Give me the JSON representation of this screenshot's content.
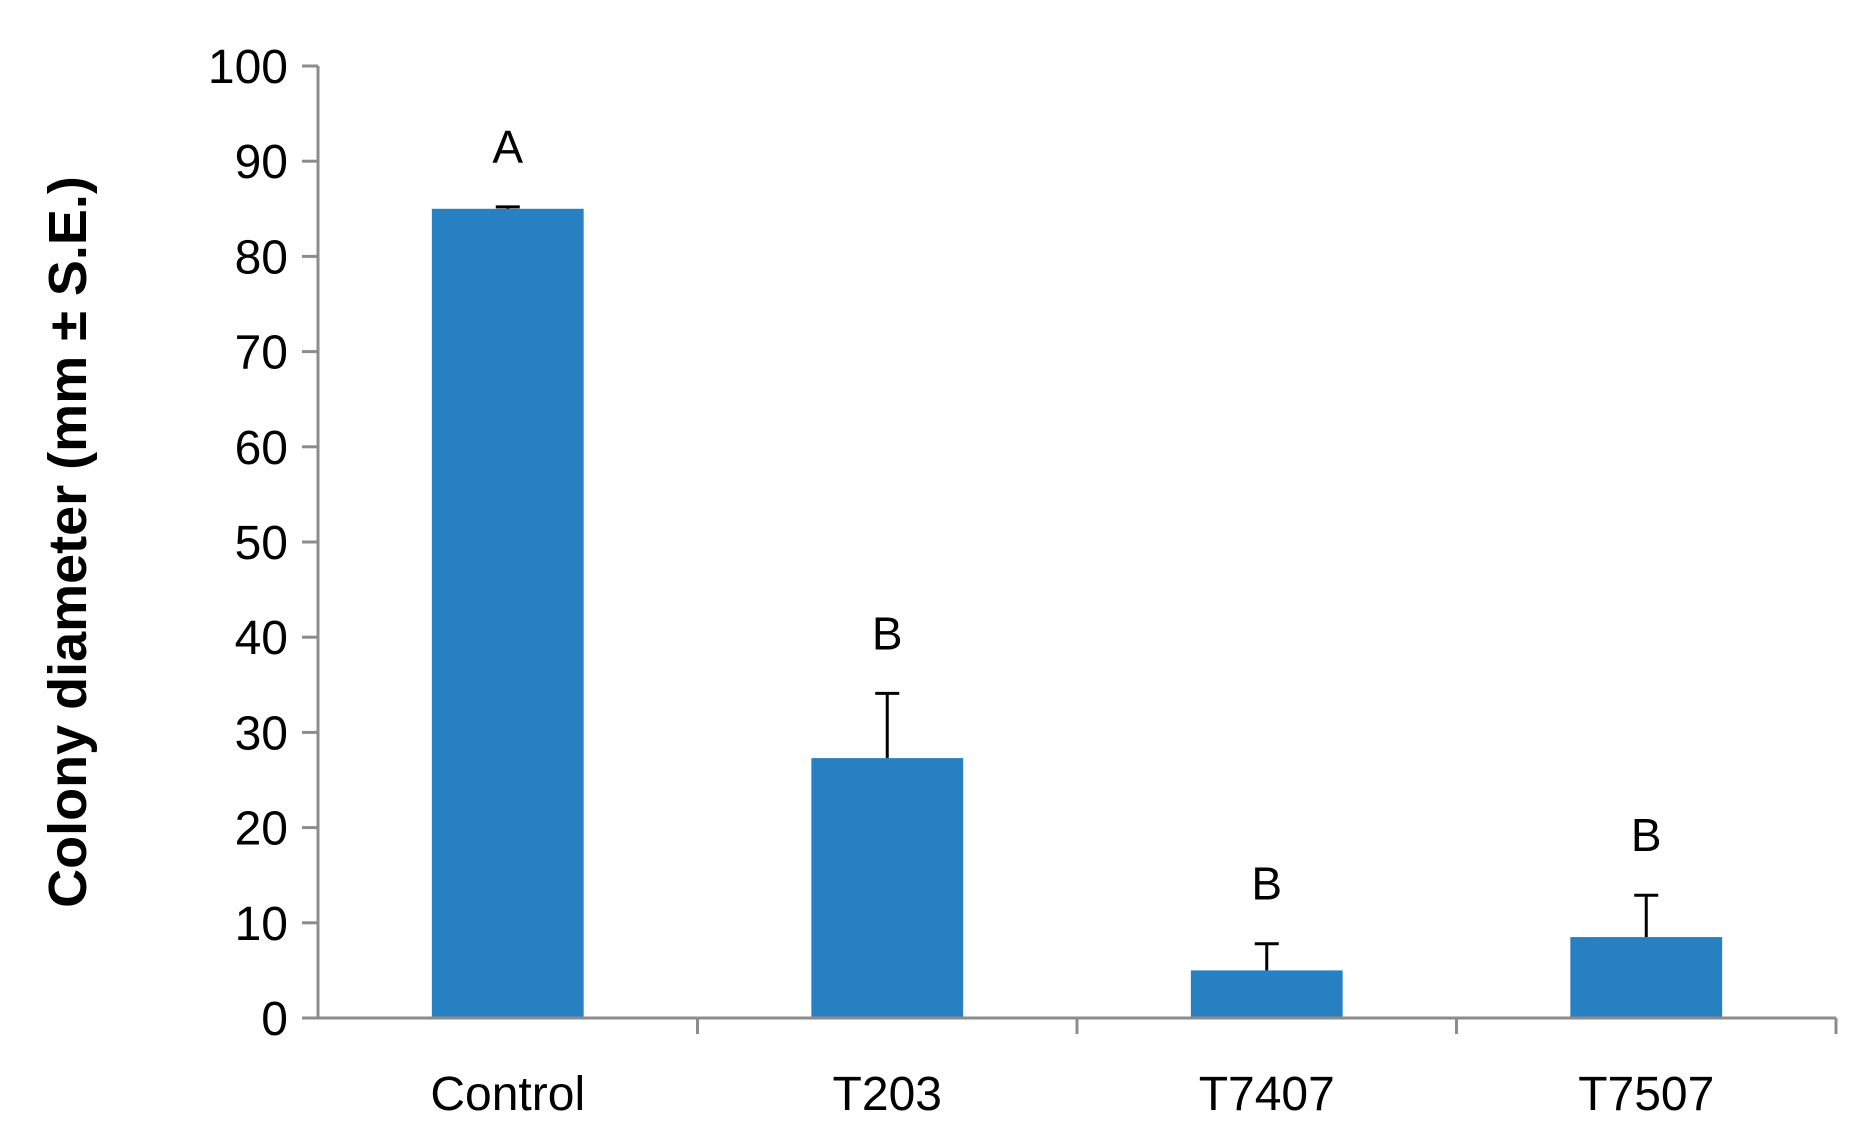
{
  "chart_data": {
    "type": "bar",
    "title": "",
    "xlabel": "",
    "ylabel": "Colony diameter (mm ± S.E.)",
    "ylim": [
      0,
      100
    ],
    "yticks": [
      "0",
      "10",
      "20",
      "30",
      "40",
      "50",
      "60",
      "70",
      "80",
      "90",
      "100"
    ],
    "categories": [
      "Control",
      "T203",
      "T7407",
      "T7507"
    ],
    "values": [
      85,
      27.3,
      5,
      8.5
    ],
    "errors": [
      0.2,
      6.8,
      2.8,
      4.4
    ],
    "significance": [
      "A",
      "B",
      "B",
      "B"
    ],
    "grid": false,
    "legend": "none",
    "colors": {
      "bar": "#2780C1",
      "axis": "#8C8C8C",
      "errorbar": "#000000"
    }
  }
}
